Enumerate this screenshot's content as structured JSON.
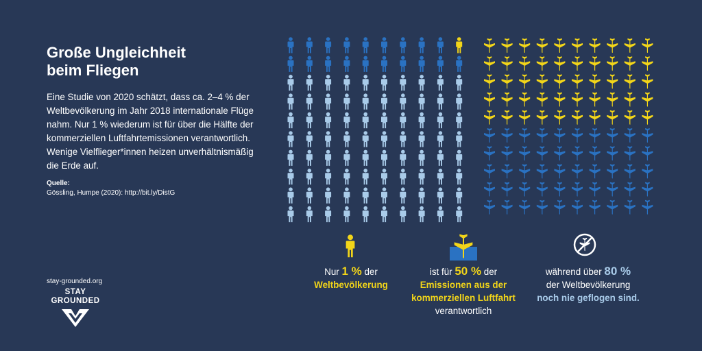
{
  "title_line1": "Große Ungleichheit",
  "title_line2": "beim Fliegen",
  "intro": "Eine Studie von 2020 schätzt, dass ca. 2–4 % der Weltbevölkerung im Jahr 2018 internationale Flüge nahm. Nur 1 % wiederum ist für über die Hälfte der kommerziellen Luftfahrtemissionen verantwortlich. Wenige Vielflieger*innen heizen unverhältnismäßig die Erde auf.",
  "source_label": "Quelle:",
  "source_text": "Gössling, Humpe (2020): http://bit.ly/DistG",
  "site": "stay-grounded.org",
  "logo": {
    "line1": "STAY",
    "line2": "GROUNDED"
  },
  "colors": {
    "background": "#283856",
    "yellow": "#f2d519",
    "dark_blue": "#2a72c2",
    "light_blue": "#a9cbe9"
  },
  "people_grid": {
    "rows": 10,
    "cols": 10,
    "flyers_percent": 20,
    "frequent_flyer_percent": 1,
    "never_flown_percent": 80,
    "icon": "person-icon"
  },
  "planes_grid": {
    "rows": 10,
    "cols": 10,
    "frequent_flyer_emissions_percent": 50,
    "icon": "plane-icon"
  },
  "stats": [
    {
      "icon": "person-icon",
      "pre": "Nur ",
      "number": "1 %",
      "post": " der",
      "highlight": "Weltbevölkerung",
      "tail": ""
    },
    {
      "icon": "plane-icon",
      "pre": "ist für ",
      "number": "50 %",
      "post": " der",
      "highlight": "Emissionen aus der kommerziellen Luftfahrt",
      "tail": "verantwortlich"
    },
    {
      "icon": "no-flight-icon",
      "pre": "während über ",
      "number": "80 %",
      "post": "der Weltbevölkerung",
      "highlight": "noch nie geflogen sind.",
      "tail": ""
    }
  ]
}
